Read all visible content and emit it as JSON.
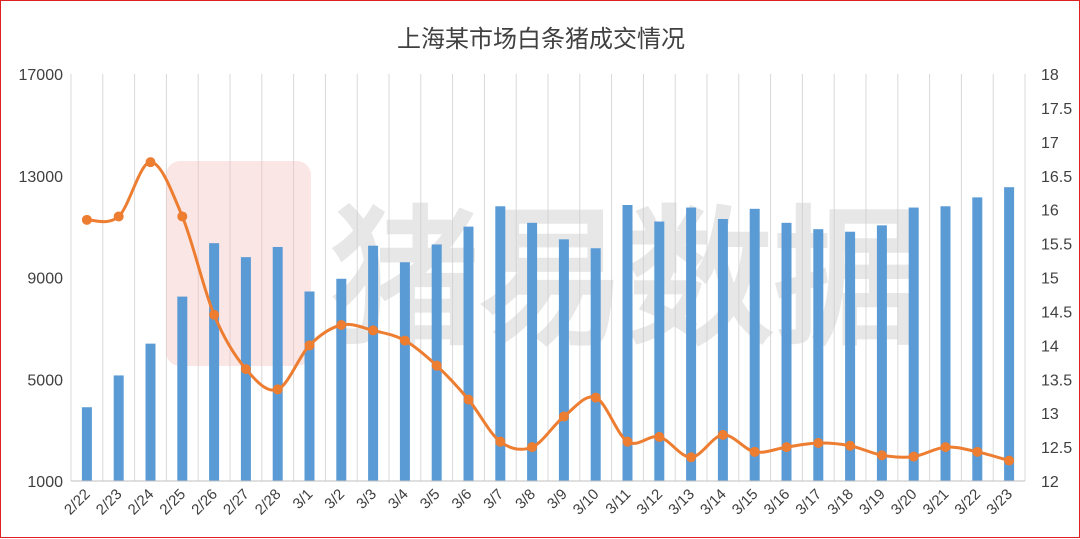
{
  "chart_data": {
    "type": "bar+line",
    "title": "上海某市场白条猪成交情况",
    "watermark": "猪易数据",
    "categories": [
      "2/22",
      "2/23",
      "2/24",
      "2/25",
      "2/26",
      "2/27",
      "2/28",
      "3/1",
      "3/2",
      "3/3",
      "3/4",
      "3/5",
      "3/6",
      "3/7",
      "3/8",
      "3/9",
      "3/10",
      "3/11",
      "3/12",
      "3/13",
      "3/14",
      "3/15",
      "3/16",
      "3/17",
      "3/18",
      "3/19",
      "3/20",
      "3/21",
      "3/22",
      "3/23"
    ],
    "series": [
      {
        "type": "bar",
        "axis": "left",
        "color": "#5b9bd5",
        "values": [
          3900,
          5150,
          6400,
          8250,
          10350,
          9800,
          10200,
          8450,
          8950,
          10250,
          9600,
          10300,
          11000,
          11800,
          11150,
          10500,
          10150,
          11850,
          11200,
          11750,
          11300,
          11700,
          11150,
          10900,
          10800,
          11050,
          11750,
          11800,
          12150,
          12550
        ]
      },
      {
        "type": "line",
        "axis": "right",
        "color": "#ed7d31",
        "values": [
          15.85,
          15.9,
          16.7,
          15.9,
          14.45,
          13.65,
          13.35,
          14.0,
          14.3,
          14.22,
          14.07,
          13.7,
          13.2,
          12.58,
          12.5,
          12.95,
          13.23,
          12.58,
          12.65,
          12.35,
          12.68,
          12.43,
          12.5,
          12.56,
          12.52,
          12.38,
          12.36,
          12.5,
          12.43,
          12.3
        ]
      }
    ],
    "y_left": {
      "min": 1000,
      "max": 17000,
      "ticks": [
        "1000",
        "5000",
        "9000",
        "13000",
        "17000"
      ]
    },
    "y_right": {
      "min": 12,
      "max": 18,
      "ticks": [
        "12",
        "12.5",
        "13",
        "13.5",
        "14",
        "14.5",
        "15",
        "15.5",
        "16",
        "16.5",
        "17",
        "17.5",
        "18"
      ]
    },
    "grid": "vertical"
  }
}
